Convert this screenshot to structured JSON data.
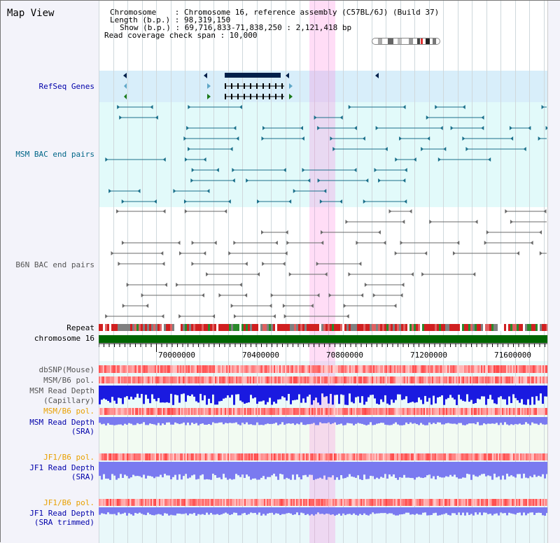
{
  "panel": {
    "title": "Map View"
  },
  "info": {
    "chrom_label": "Chromosome    : Chromosome 16, reference assembly (C57BL/6J) (Build 37)",
    "length_label": "Length (b.p.) : 98,319,150",
    "show_label": "Show (b.p.) : 69,716,833-71,838,250 : 2,121,418 bp",
    "coverage_label": "Read coverage check span : 10,000"
  },
  "tracks": {
    "refseq": "RefSeq Genes",
    "msm_bac": "MSM BAC end pairs",
    "b6n_bac": "B6N BAC end pairs",
    "repeat": "Repeat",
    "chromosome": "chromosome 16",
    "dbsnp": "dbSNP(Mouse)",
    "msm_pol_1": "MSM/B6 pol.",
    "msm_depth_cap_1": "MSM Read Depth",
    "msm_depth_cap_2": "(Capillary)",
    "msm_pol_2": "MSM/B6 pol.",
    "msm_depth_sra_1": "MSM Read Depth",
    "msm_depth_sra_2": "(SRA)",
    "jf1_pol_1": "JF1/B6 pol.",
    "jf1_depth_1": "JF1 Read Depth",
    "jf1_depth_2": "(SRA)",
    "jf1_pol_2": "JF1/B6 pol.",
    "jf1_trim_1": "JF1 Read Depth",
    "jf1_trim_2": "(SRA trimmed)"
  },
  "axis": {
    "ticks": [
      "70000000",
      "70400000",
      "70800000",
      "71200000",
      "71600000"
    ]
  },
  "colors": {
    "highlight": "#ff78dc",
    "refseq_bg": "#d8eefa",
    "msm_bg": "#e2fafa",
    "chrom": "#006600",
    "gene": "#00204a",
    "msm_pair": "#1a6f8a",
    "b6n_pair": "#6a6a6a",
    "snp": "#e84040",
    "depth_capillary": "#1a1ae0",
    "depth_sra": "#7a7af0"
  }
}
